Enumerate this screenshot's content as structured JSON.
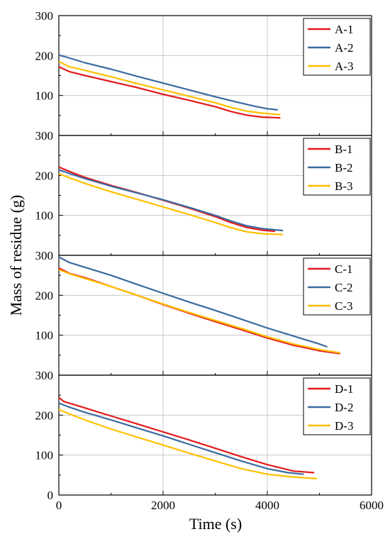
{
  "chart_data": {
    "type": "line",
    "xlabel": "Time (s)",
    "ylabel": "Mass of residue (g)",
    "xlim": [
      0,
      6000
    ],
    "ylim": [
      0,
      300
    ],
    "x_ticks": [
      "0",
      "2000",
      "4000",
      "6000"
    ],
    "y_ticks": [
      "0",
      "100",
      "200",
      "300"
    ],
    "grid": true,
    "legend_position": "top-right",
    "colors": {
      "series1": "#e41a1c",
      "series2": "#3b6aa0",
      "series3": "#ffc000"
    },
    "panels": [
      {
        "id": "A",
        "series": [
          {
            "name": "A-1",
            "color": "#e41a1c",
            "x": [
              0,
              200,
              500,
              1000,
              1500,
              2000,
              2500,
              3000,
              3300,
              3600,
              3900,
              4250
            ],
            "y": [
              172,
              160,
              150,
              135,
              120,
              103,
              88,
              72,
              60,
              51,
              46,
              44
            ]
          },
          {
            "name": "A-2",
            "color": "#3b6aa0",
            "x": [
              0,
              100,
              500,
              1000,
              1500,
              2000,
              2500,
              3000,
              3500,
              3800,
              4000,
              4200
            ],
            "y": [
              201,
              198,
              182,
              166,
              148,
              131,
              114,
              97,
              81,
              72,
              67,
              64
            ]
          },
          {
            "name": "A-3",
            "color": "#ffc000",
            "x": [
              0,
              200,
              500,
              1000,
              1500,
              2000,
              2500,
              3000,
              3300,
              3600,
              3900,
              4250
            ],
            "y": [
              185,
              172,
              163,
              147,
              130,
              114,
              98,
              82,
              70,
              61,
              56,
              52
            ]
          }
        ]
      },
      {
        "id": "B",
        "series": [
          {
            "name": "B-1",
            "color": "#e41a1c",
            "x": [
              0,
              200,
              500,
              1000,
              1500,
              2000,
              2500,
              3000,
              3300,
              3600,
              3900,
              4150
            ],
            "y": [
              221,
              210,
              195,
              175,
              157,
              138,
              118,
              97,
              82,
              70,
              63,
              60
            ]
          },
          {
            "name": "B-2",
            "color": "#3b6aa0",
            "x": [
              0,
              200,
              500,
              1000,
              1500,
              2000,
              2500,
              3000,
              3300,
              3600,
              3900,
              4300
            ],
            "y": [
              214,
              205,
              192,
              173,
              156,
              139,
              120,
              100,
              86,
              74,
              67,
              62
            ]
          },
          {
            "name": "B-3",
            "color": "#ffc000",
            "x": [
              0,
              200,
              500,
              1000,
              1500,
              2000,
              2500,
              3000,
              3300,
              3600,
              3900,
              4300
            ],
            "y": [
              204,
              194,
              180,
              159,
              140,
              121,
              102,
              82,
              69,
              59,
              54,
              52
            ]
          }
        ]
      },
      {
        "id": "C",
        "series": [
          {
            "name": "C-1",
            "color": "#e41a1c",
            "x": [
              0,
              200,
              500,
              1000,
              1500,
              2000,
              2500,
              3000,
              3500,
              4000,
              4500,
              5000,
              5400
            ],
            "y": [
              268,
              255,
              244,
              222,
              200,
              177,
              155,
              134,
              114,
              93,
              75,
              61,
              54
            ]
          },
          {
            "name": "C-2",
            "color": "#3b6aa0",
            "x": [
              0,
              200,
              500,
              1000,
              1500,
              2000,
              2500,
              3000,
              3500,
              4000,
              4500,
              5000,
              5150
            ],
            "y": [
              296,
              282,
              270,
              250,
              227,
              205,
              183,
              162,
              140,
              118,
              98,
              78,
              71
            ]
          },
          {
            "name": "C-3",
            "color": "#ffc000",
            "x": [
              0,
              200,
              500,
              1000,
              1500,
              2000,
              2500,
              3000,
              3500,
              4000,
              4500,
              5000,
              5400
            ],
            "y": [
              264,
              254,
              242,
              222,
              200,
              178,
              157,
              137,
              117,
              96,
              78,
              64,
              56
            ]
          }
        ]
      },
      {
        "id": "D",
        "series": [
          {
            "name": "D-1",
            "color": "#e41a1c",
            "x": [
              0,
              100,
              500,
              1000,
              1500,
              2000,
              2500,
              3000,
              3500,
              4000,
              4500,
              4900
            ],
            "y": [
              244,
              234,
              218,
              198,
              178,
              158,
              138,
              117,
              96,
              76,
              60,
              56
            ]
          },
          {
            "name": "D-2",
            "color": "#3b6aa0",
            "x": [
              0,
              200,
              500,
              1000,
              1500,
              2000,
              2500,
              3000,
              3500,
              4000,
              4400,
              4700
            ],
            "y": [
              230,
              220,
              207,
              188,
              168,
              148,
              127,
              106,
              85,
              66,
              56,
              52
            ]
          },
          {
            "name": "D-3",
            "color": "#ffc000",
            "x": [
              0,
              200,
              500,
              1000,
              1500,
              2000,
              2500,
              3000,
              3500,
              4000,
              4500,
              4950
            ],
            "y": [
              214,
              203,
              188,
              165,
              145,
              125,
              105,
              85,
              66,
              52,
              45,
              41
            ]
          }
        ]
      }
    ]
  }
}
